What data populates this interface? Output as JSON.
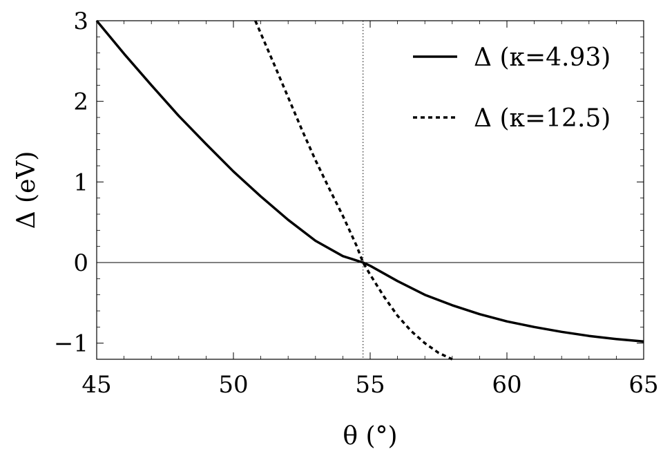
{
  "chart_data": {
    "type": "line",
    "xlabel": "θ (°)",
    "ylabel": "Δ (eV)",
    "xlim": [
      45,
      65
    ],
    "ylim": [
      -1.2,
      3
    ],
    "x_ticks": [
      45,
      50,
      55,
      60,
      65
    ],
    "x_tick_labels": [
      "45",
      "50",
      "55",
      "60",
      "65"
    ],
    "y_ticks": [
      -1,
      0,
      1,
      2,
      3
    ],
    "y_tick_labels": [
      "−1",
      "0",
      "1",
      "2",
      "3"
    ],
    "grid": false,
    "legend_position": "top-right",
    "reference_lines": {
      "horizontal_y": 0,
      "vertical_x": 54.74
    },
    "series": [
      {
        "name": "Δ (κ=4.93)",
        "style": "solid",
        "x": [
          45,
          46,
          47,
          48,
          49,
          50,
          51,
          52,
          53,
          54,
          54.74,
          55,
          56,
          57,
          58,
          59,
          60,
          61,
          62,
          63,
          64,
          65
        ],
        "y": [
          3.0,
          2.59,
          2.2,
          1.82,
          1.47,
          1.13,
          0.82,
          0.53,
          0.27,
          0.08,
          0.0,
          -0.04,
          -0.23,
          -0.4,
          -0.53,
          -0.64,
          -0.73,
          -0.8,
          -0.86,
          -0.91,
          -0.95,
          -0.98
        ]
      },
      {
        "name": "Δ (κ=12.5)",
        "style": "dashed",
        "x": [
          50.8,
          51.5,
          52,
          52.5,
          53,
          53.5,
          54,
          54.5,
          54.74,
          55,
          55.5,
          56,
          56.5,
          57,
          57.5,
          58
        ],
        "y": [
          3.0,
          2.45,
          2.05,
          1.65,
          1.27,
          0.92,
          0.58,
          0.21,
          0.0,
          -0.15,
          -0.42,
          -0.66,
          -0.85,
          -1.0,
          -1.12,
          -1.2
        ]
      }
    ]
  }
}
